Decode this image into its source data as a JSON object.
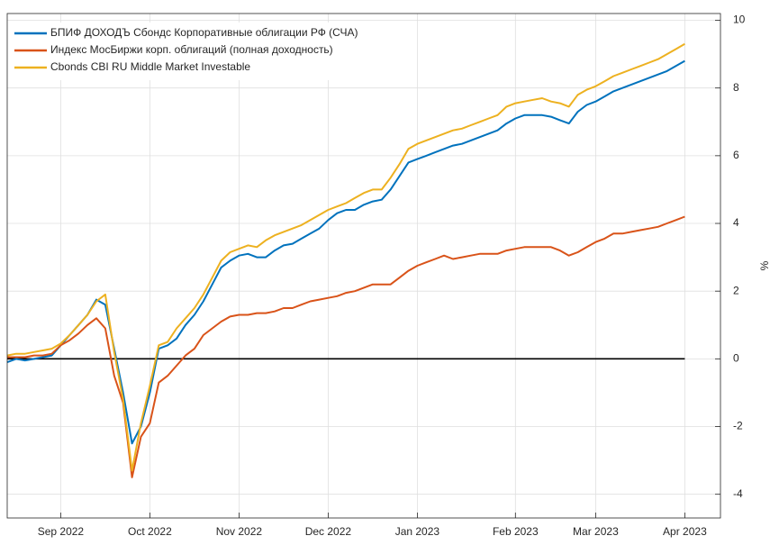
{
  "chart_data": {
    "type": "line",
    "categories": [
      null,
      null,
      null,
      null,
      null,
      null,
      "Sep 2022",
      null,
      null,
      null,
      null,
      null,
      null,
      null,
      null,
      null,
      "Oct 2022",
      null,
      null,
      null,
      null,
      null,
      null,
      null,
      null,
      null,
      "Nov 2022",
      null,
      null,
      null,
      null,
      null,
      null,
      null,
      null,
      null,
      "Dec 2022",
      null,
      null,
      null,
      null,
      null,
      null,
      null,
      null,
      null,
      "Jan 2023",
      null,
      null,
      null,
      null,
      null,
      null,
      null,
      null,
      null,
      null,
      "Feb 2023",
      null,
      null,
      null,
      null,
      null,
      null,
      null,
      null,
      "Mar 2023",
      null,
      null,
      null,
      null,
      null,
      null,
      null,
      null,
      null,
      "Apr 2023"
    ],
    "series": [
      {
        "name": "БПИФ ДОХОДЪ Сбондс Корпоративные облигации РФ (СЧА)",
        "color": "#0072BD",
        "values": [
          -0.1,
          0.0,
          -0.05,
          0.0,
          0.05,
          0.1,
          0.4,
          0.7,
          1.0,
          1.3,
          1.75,
          1.6,
          0.3,
          -1.0,
          -2.5,
          -2.0,
          -1.0,
          0.3,
          0.4,
          0.6,
          1.0,
          1.3,
          1.7,
          2.2,
          2.7,
          2.9,
          3.05,
          3.1,
          3.0,
          3.0,
          3.2,
          3.35,
          3.4,
          3.55,
          3.7,
          3.85,
          4.1,
          4.3,
          4.4,
          4.4,
          4.55,
          4.65,
          4.7,
          5.0,
          5.4,
          5.8,
          5.9,
          6.0,
          6.1,
          6.2,
          6.3,
          6.35,
          6.45,
          6.55,
          6.65,
          6.75,
          6.95,
          7.1,
          7.2,
          7.2,
          7.2,
          7.15,
          7.05,
          6.95,
          7.3,
          7.5,
          7.6,
          7.75,
          7.9,
          8.0,
          8.1,
          8.2,
          8.3,
          8.4,
          8.5,
          8.65,
          8.8
        ]
      },
      {
        "name": "Индекс МосБиржи корп. облигаций (полная доходность)",
        "color": "#D95319",
        "values": [
          0.05,
          0.05,
          0.05,
          0.1,
          0.1,
          0.15,
          0.4,
          0.55,
          0.75,
          1.0,
          1.2,
          0.9,
          -0.5,
          -1.3,
          -3.5,
          -2.3,
          -1.9,
          -0.7,
          -0.5,
          -0.2,
          0.1,
          0.3,
          0.7,
          0.9,
          1.1,
          1.25,
          1.3,
          1.3,
          1.35,
          1.35,
          1.4,
          1.5,
          1.5,
          1.6,
          1.7,
          1.75,
          1.8,
          1.85,
          1.95,
          2.0,
          2.1,
          2.2,
          2.2,
          2.2,
          2.4,
          2.6,
          2.75,
          2.85,
          2.95,
          3.05,
          2.95,
          3.0,
          3.05,
          3.1,
          3.1,
          3.1,
          3.2,
          3.25,
          3.3,
          3.3,
          3.3,
          3.3,
          3.2,
          3.05,
          3.15,
          3.3,
          3.45,
          3.55,
          3.7,
          3.7,
          3.75,
          3.8,
          3.85,
          3.9,
          4.0,
          4.1,
          4.2
        ]
      },
      {
        "name": "Cbonds CBI RU Middle Market Investable",
        "color": "#EDB120",
        "values": [
          0.1,
          0.15,
          0.15,
          0.2,
          0.25,
          0.3,
          0.45,
          0.7,
          1.0,
          1.3,
          1.7,
          1.9,
          0.2,
          -1.2,
          -3.3,
          -1.9,
          -0.8,
          0.4,
          0.5,
          0.9,
          1.2,
          1.5,
          1.9,
          2.4,
          2.9,
          3.15,
          3.25,
          3.35,
          3.3,
          3.5,
          3.65,
          3.75,
          3.85,
          3.95,
          4.1,
          4.25,
          4.4,
          4.5,
          4.6,
          4.75,
          4.9,
          5.0,
          5.0,
          5.35,
          5.75,
          6.2,
          6.35,
          6.45,
          6.55,
          6.65,
          6.75,
          6.8,
          6.9,
          7.0,
          7.1,
          7.2,
          7.45,
          7.55,
          7.6,
          7.65,
          7.7,
          7.6,
          7.55,
          7.45,
          7.8,
          7.95,
          8.05,
          8.2,
          8.35,
          8.45,
          8.55,
          8.65,
          8.75,
          8.85,
          9.0,
          9.15,
          9.3
        ]
      }
    ],
    "ylabel": "%",
    "ylim": [
      -4.7,
      10.2
    ],
    "yticks": [
      -4,
      -2,
      0,
      2,
      4,
      6,
      8,
      10
    ],
    "reference_line": 0,
    "grid": true,
    "legend": "upper left"
  }
}
